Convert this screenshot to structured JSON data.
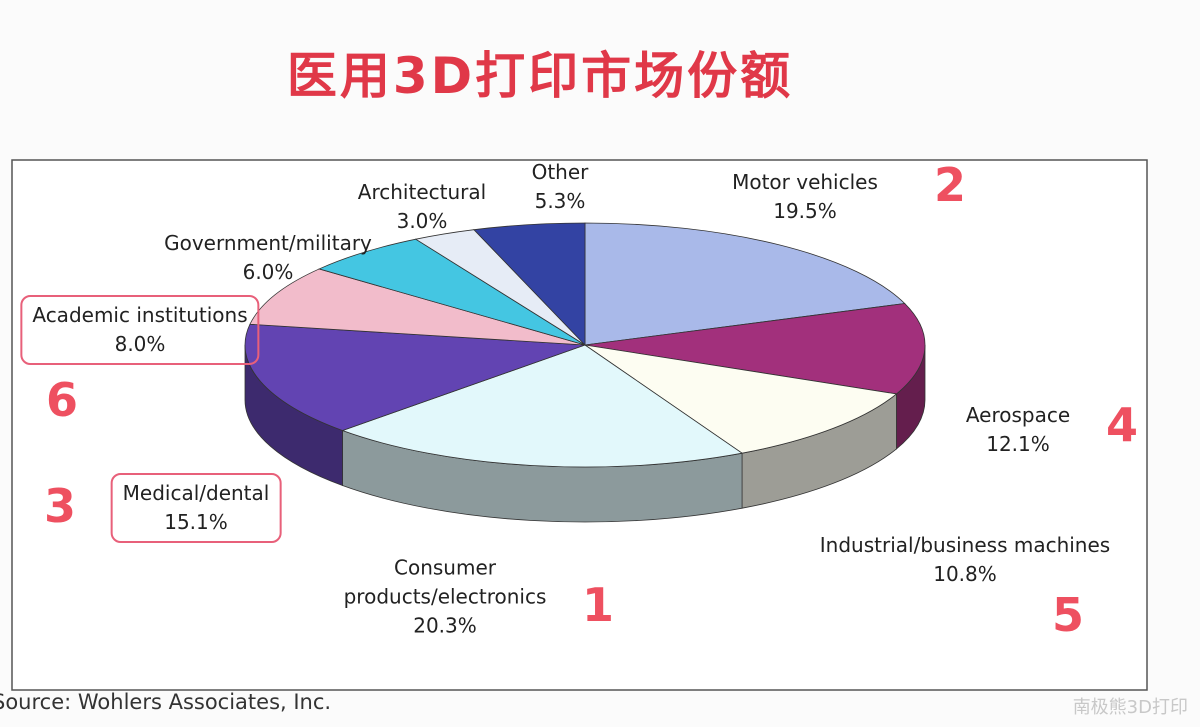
{
  "chart_data": {
    "type": "pie",
    "title": "医用3D打印市场份额",
    "categories": [
      "Motor vehicles",
      "Aerospace",
      "Industrial/business machines",
      "Consumer products/electronics",
      "Medical/dental",
      "Academic institutions",
      "Government/military",
      "Architectural",
      "Other"
    ],
    "values": [
      19.5,
      12.1,
      10.8,
      20.3,
      15.1,
      8.0,
      6.0,
      3.0,
      5.3
    ],
    "value_labels": [
      "19.5%",
      "12.1%",
      "10.8%",
      "20.3%",
      "15.1%",
      "8.0%",
      "6.0%",
      "3.0%",
      "5.3%"
    ],
    "colors": [
      "#a9b9e9",
      "#a2307c",
      "#fdfdf2",
      "#e2f8fb",
      "#6244b2",
      "#f2bccb",
      "#44c6e2",
      "#e6ecf6",
      "#3343a3"
    ],
    "rank_labels": [
      "2",
      "4",
      "5",
      "1",
      "3",
      "6",
      null,
      null,
      null
    ],
    "source": "Source: Wohlers Associates, Inc.",
    "watermark": "南极熊3D打印"
  }
}
